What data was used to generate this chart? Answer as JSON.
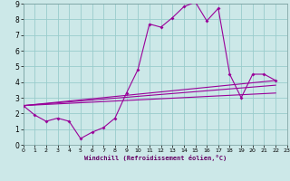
{
  "xlabel": "Windchill (Refroidissement éolien,°C)",
  "bg_color": "#cce8e8",
  "grid_color": "#99cccc",
  "line_color": "#990099",
  "xlim": [
    0,
    23
  ],
  "ylim": [
    0,
    9
  ],
  "xticks": [
    0,
    1,
    2,
    3,
    4,
    5,
    6,
    7,
    8,
    9,
    10,
    11,
    12,
    13,
    14,
    15,
    16,
    17,
    18,
    19,
    20,
    21,
    22,
    23
  ],
  "yticks": [
    0,
    1,
    2,
    3,
    4,
    5,
    6,
    7,
    8,
    9
  ],
  "main_x": [
    0,
    1,
    2,
    3,
    4,
    5,
    6,
    7,
    8,
    9,
    10,
    11,
    12,
    13,
    14,
    15,
    16,
    17,
    18,
    19,
    20,
    21,
    22
  ],
  "main_y": [
    2.5,
    1.9,
    1.5,
    1.7,
    1.5,
    0.4,
    0.8,
    1.1,
    1.7,
    3.3,
    4.8,
    7.7,
    7.5,
    8.1,
    8.8,
    9.1,
    7.9,
    8.7,
    4.5,
    3.0,
    4.5,
    4.5,
    4.1
  ],
  "line2_x": [
    0,
    22
  ],
  "line2_y": [
    2.5,
    4.1
  ],
  "line3_x": [
    0,
    22
  ],
  "line3_y": [
    2.5,
    3.8
  ],
  "line4_x": [
    0,
    22
  ],
  "line4_y": [
    2.5,
    3.3
  ]
}
